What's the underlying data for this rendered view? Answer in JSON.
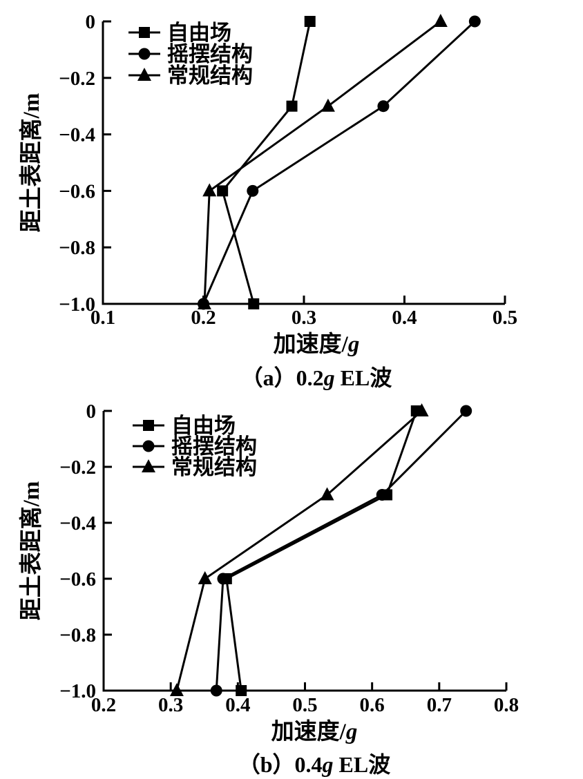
{
  "page": {
    "background_color": "#ffffff",
    "ink_color": "#000000"
  },
  "chart_data": [
    {
      "id": "a",
      "type": "line",
      "caption_text": "（a）0.2g EL波",
      "caption_parts": [
        {
          "t": "（a）0.2"
        },
        {
          "t": "g",
          "i": true
        },
        {
          "t": " EL波"
        }
      ],
      "xlabel_text": "加速度/g",
      "xlabel_parts": [
        {
          "t": "加速度/"
        },
        {
          "t": "g",
          "i": true
        }
      ],
      "ylabel": "距土表距离/m",
      "xlim": [
        0.1,
        0.5
      ],
      "xtick_labels": [
        "0.1",
        "0.2",
        "0.3",
        "0.4",
        "0.5"
      ],
      "xtick_values": [
        0.1,
        0.2,
        0.3,
        0.4,
        0.5
      ],
      "ylim": [
        -1.0,
        0
      ],
      "ytick_labels": [
        "0",
        "−0.2",
        "−0.4",
        "−0.6",
        "−0.8",
        "−1.0"
      ],
      "ytick_values": [
        0,
        -0.2,
        -0.4,
        -0.6,
        -0.8,
        -1.0
      ],
      "depths": [
        0,
        -0.3,
        -0.6,
        -1.0
      ],
      "series": [
        {
          "name": "自由场",
          "marker": "square",
          "values": [
            0.306,
            0.288,
            0.219,
            0.25
          ]
        },
        {
          "name": "摇摆结构",
          "marker": "circle",
          "values": [
            0.47,
            0.379,
            0.249,
            0.2
          ]
        },
        {
          "name": "常规结构",
          "marker": "triangle",
          "values": [
            0.436,
            0.324,
            0.206,
            0.201
          ]
        }
      ],
      "legend_position": "top-left",
      "grid": false
    },
    {
      "id": "b",
      "type": "line",
      "caption_text": "（b）0.4g EL波",
      "caption_parts": [
        {
          "t": "（b）0.4"
        },
        {
          "t": "g",
          "i": true
        },
        {
          "t": " EL波"
        }
      ],
      "xlabel_text": "加速度/g",
      "xlabel_parts": [
        {
          "t": "加速度/"
        },
        {
          "t": "g",
          "i": true
        }
      ],
      "ylabel": "距土表距离/m",
      "xlim": [
        0.2,
        0.8
      ],
      "xtick_labels": [
        "0.2",
        "0.3",
        "0.4",
        "0.5",
        "0.6",
        "0.7",
        "0.8"
      ],
      "xtick_values": [
        0.2,
        0.3,
        0.4,
        0.5,
        0.6,
        0.7,
        0.8
      ],
      "ylim": [
        -1.0,
        0
      ],
      "ytick_labels": [
        "0",
        "−0.2",
        "−0.4",
        "−0.6",
        "−0.8",
        "−1.0"
      ],
      "ytick_values": [
        0,
        -0.2,
        -0.4,
        -0.6,
        -0.8,
        -1.0
      ],
      "depths": [
        0,
        -0.3,
        -0.6,
        -1.0
      ],
      "series": [
        {
          "name": "自由场",
          "marker": "square",
          "values": [
            0.666,
            0.622,
            0.383,
            0.405
          ]
        },
        {
          "name": "摇摆结构",
          "marker": "circle",
          "values": [
            0.74,
            0.615,
            0.378,
            0.368
          ]
        },
        {
          "name": "常规结构",
          "marker": "triangle",
          "values": [
            0.674,
            0.533,
            0.351,
            0.309
          ]
        }
      ],
      "legend_position": "top-left",
      "grid": false
    }
  ]
}
